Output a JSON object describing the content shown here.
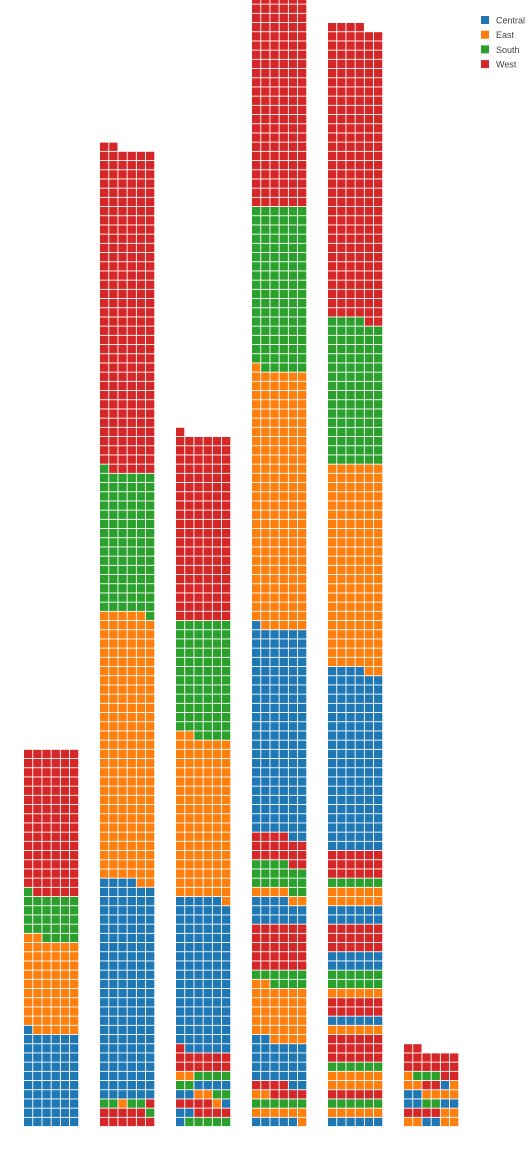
{
  "chart_data": {
    "type": "bar",
    "subtype": "stacked-unit-waffle",
    "unit_value": 1,
    "columns_per_bar": 6,
    "categories": [
      "",
      "",
      "",
      "",
      "",
      ""
    ],
    "series_order": [
      "Central",
      "East",
      "South",
      "West"
    ],
    "colors": {
      "Central": "#1f77b4",
      "East": "#ff7f0e",
      "South": "#2ca02c",
      "West": "#d62728"
    },
    "legend": {
      "position": "top-right",
      "items": [
        "Central",
        "East",
        "South",
        "West"
      ]
    },
    "bars": [
      {
        "category": "",
        "blocks": [
          {
            "series": "Central",
            "count": 61
          },
          {
            "series": "East",
            "count": 61
          },
          {
            "series": "South",
            "count": 29
          },
          {
            "series": "West",
            "count": 95
          }
        ]
      },
      {
        "category": "",
        "blocks": [
          {
            "series": "West",
            "count": 11
          },
          {
            "series": "South",
            "count": 3
          },
          {
            "series": "East",
            "count": 1
          },
          {
            "series": "South",
            "count": 2
          },
          {
            "series": "West",
            "count": 1
          },
          {
            "series": "Central",
            "count": 142
          },
          {
            "series": "East",
            "count": 175
          },
          {
            "series": "South",
            "count": 92
          },
          {
            "series": "West",
            "count": 211
          }
        ]
      },
      {
        "category": "",
        "blocks": [
          {
            "series": "Central",
            "count": 1
          },
          {
            "series": "South",
            "count": 5
          },
          {
            "series": "Central",
            "count": 2
          },
          {
            "series": "West",
            "count": 8
          },
          {
            "series": "East",
            "count": 1
          },
          {
            "series": "Central",
            "count": 3
          },
          {
            "series": "East",
            "count": 2
          },
          {
            "series": "South",
            "count": 4
          },
          {
            "series": "Central",
            "count": 4
          },
          {
            "series": "East",
            "count": 2
          },
          {
            "series": "South",
            "count": 4
          },
          {
            "series": "West",
            "count": 13
          },
          {
            "series": "Central",
            "count": 100
          },
          {
            "series": "East",
            "count": 105
          },
          {
            "series": "South",
            "count": 76
          },
          {
            "series": "West",
            "count": 121
          }
        ]
      },
      {
        "category": "",
        "blocks": [
          {
            "series": "Central",
            "count": 5
          },
          {
            "series": "East",
            "count": 7
          },
          {
            "series": "South",
            "count": 6
          },
          {
            "series": "East",
            "count": 2
          },
          {
            "series": "West",
            "count": 8
          },
          {
            "series": "Central",
            "count": 28
          },
          {
            "series": "East",
            "count": 36
          },
          {
            "series": "South",
            "count": 10
          },
          {
            "series": "West",
            "count": 30
          },
          {
            "series": "Central",
            "count": 16
          },
          {
            "series": "East",
            "count": 6
          },
          {
            "series": "South",
            "count": 18
          },
          {
            "series": "West",
            "count": 18
          },
          {
            "series": "Central",
            "count": 135
          },
          {
            "series": "East",
            "count": 168
          },
          {
            "series": "South",
            "count": 107
          },
          {
            "series": "West",
            "count": 186
          }
        ]
      },
      {
        "category": "",
        "blocks": [
          {
            "series": "Central",
            "count": 6
          },
          {
            "series": "East",
            "count": 6
          },
          {
            "series": "South",
            "count": 6
          },
          {
            "series": "West",
            "count": 6
          },
          {
            "series": "East",
            "count": 12
          },
          {
            "series": "South",
            "count": 6
          },
          {
            "series": "West",
            "count": 18
          },
          {
            "series": "East",
            "count": 6
          },
          {
            "series": "Central",
            "count": 6
          },
          {
            "series": "West",
            "count": 12
          },
          {
            "series": "East",
            "count": 6
          },
          {
            "series": "South",
            "count": 12
          },
          {
            "series": "Central",
            "count": 12
          },
          {
            "series": "West",
            "count": 18
          },
          {
            "series": "Central",
            "count": 12
          },
          {
            "series": "East",
            "count": 12
          },
          {
            "series": "South",
            "count": 6
          },
          {
            "series": "West",
            "count": 18
          },
          {
            "series": "Central",
            "count": 118
          },
          {
            "series": "East",
            "count": 134
          },
          {
            "series": "South",
            "count": 94
          },
          {
            "series": "West",
            "count": 192
          }
        ]
      },
      {
        "category": "",
        "blocks": [
          {
            "series": "East",
            "count": 2
          },
          {
            "series": "Central",
            "count": 2
          },
          {
            "series": "East",
            "count": 2
          },
          {
            "series": "West",
            "count": 4
          },
          {
            "series": "East",
            "count": 2
          },
          {
            "series": "Central",
            "count": 2
          },
          {
            "series": "South",
            "count": 2
          },
          {
            "series": "Central",
            "count": 4
          },
          {
            "series": "East",
            "count": 6
          },
          {
            "series": "West",
            "count": 2
          },
          {
            "series": "Central",
            "count": 1
          },
          {
            "series": "East",
            "count": 2
          },
          {
            "series": "South",
            "count": 3
          },
          {
            "series": "West",
            "count": 16
          }
        ]
      }
    ]
  }
}
